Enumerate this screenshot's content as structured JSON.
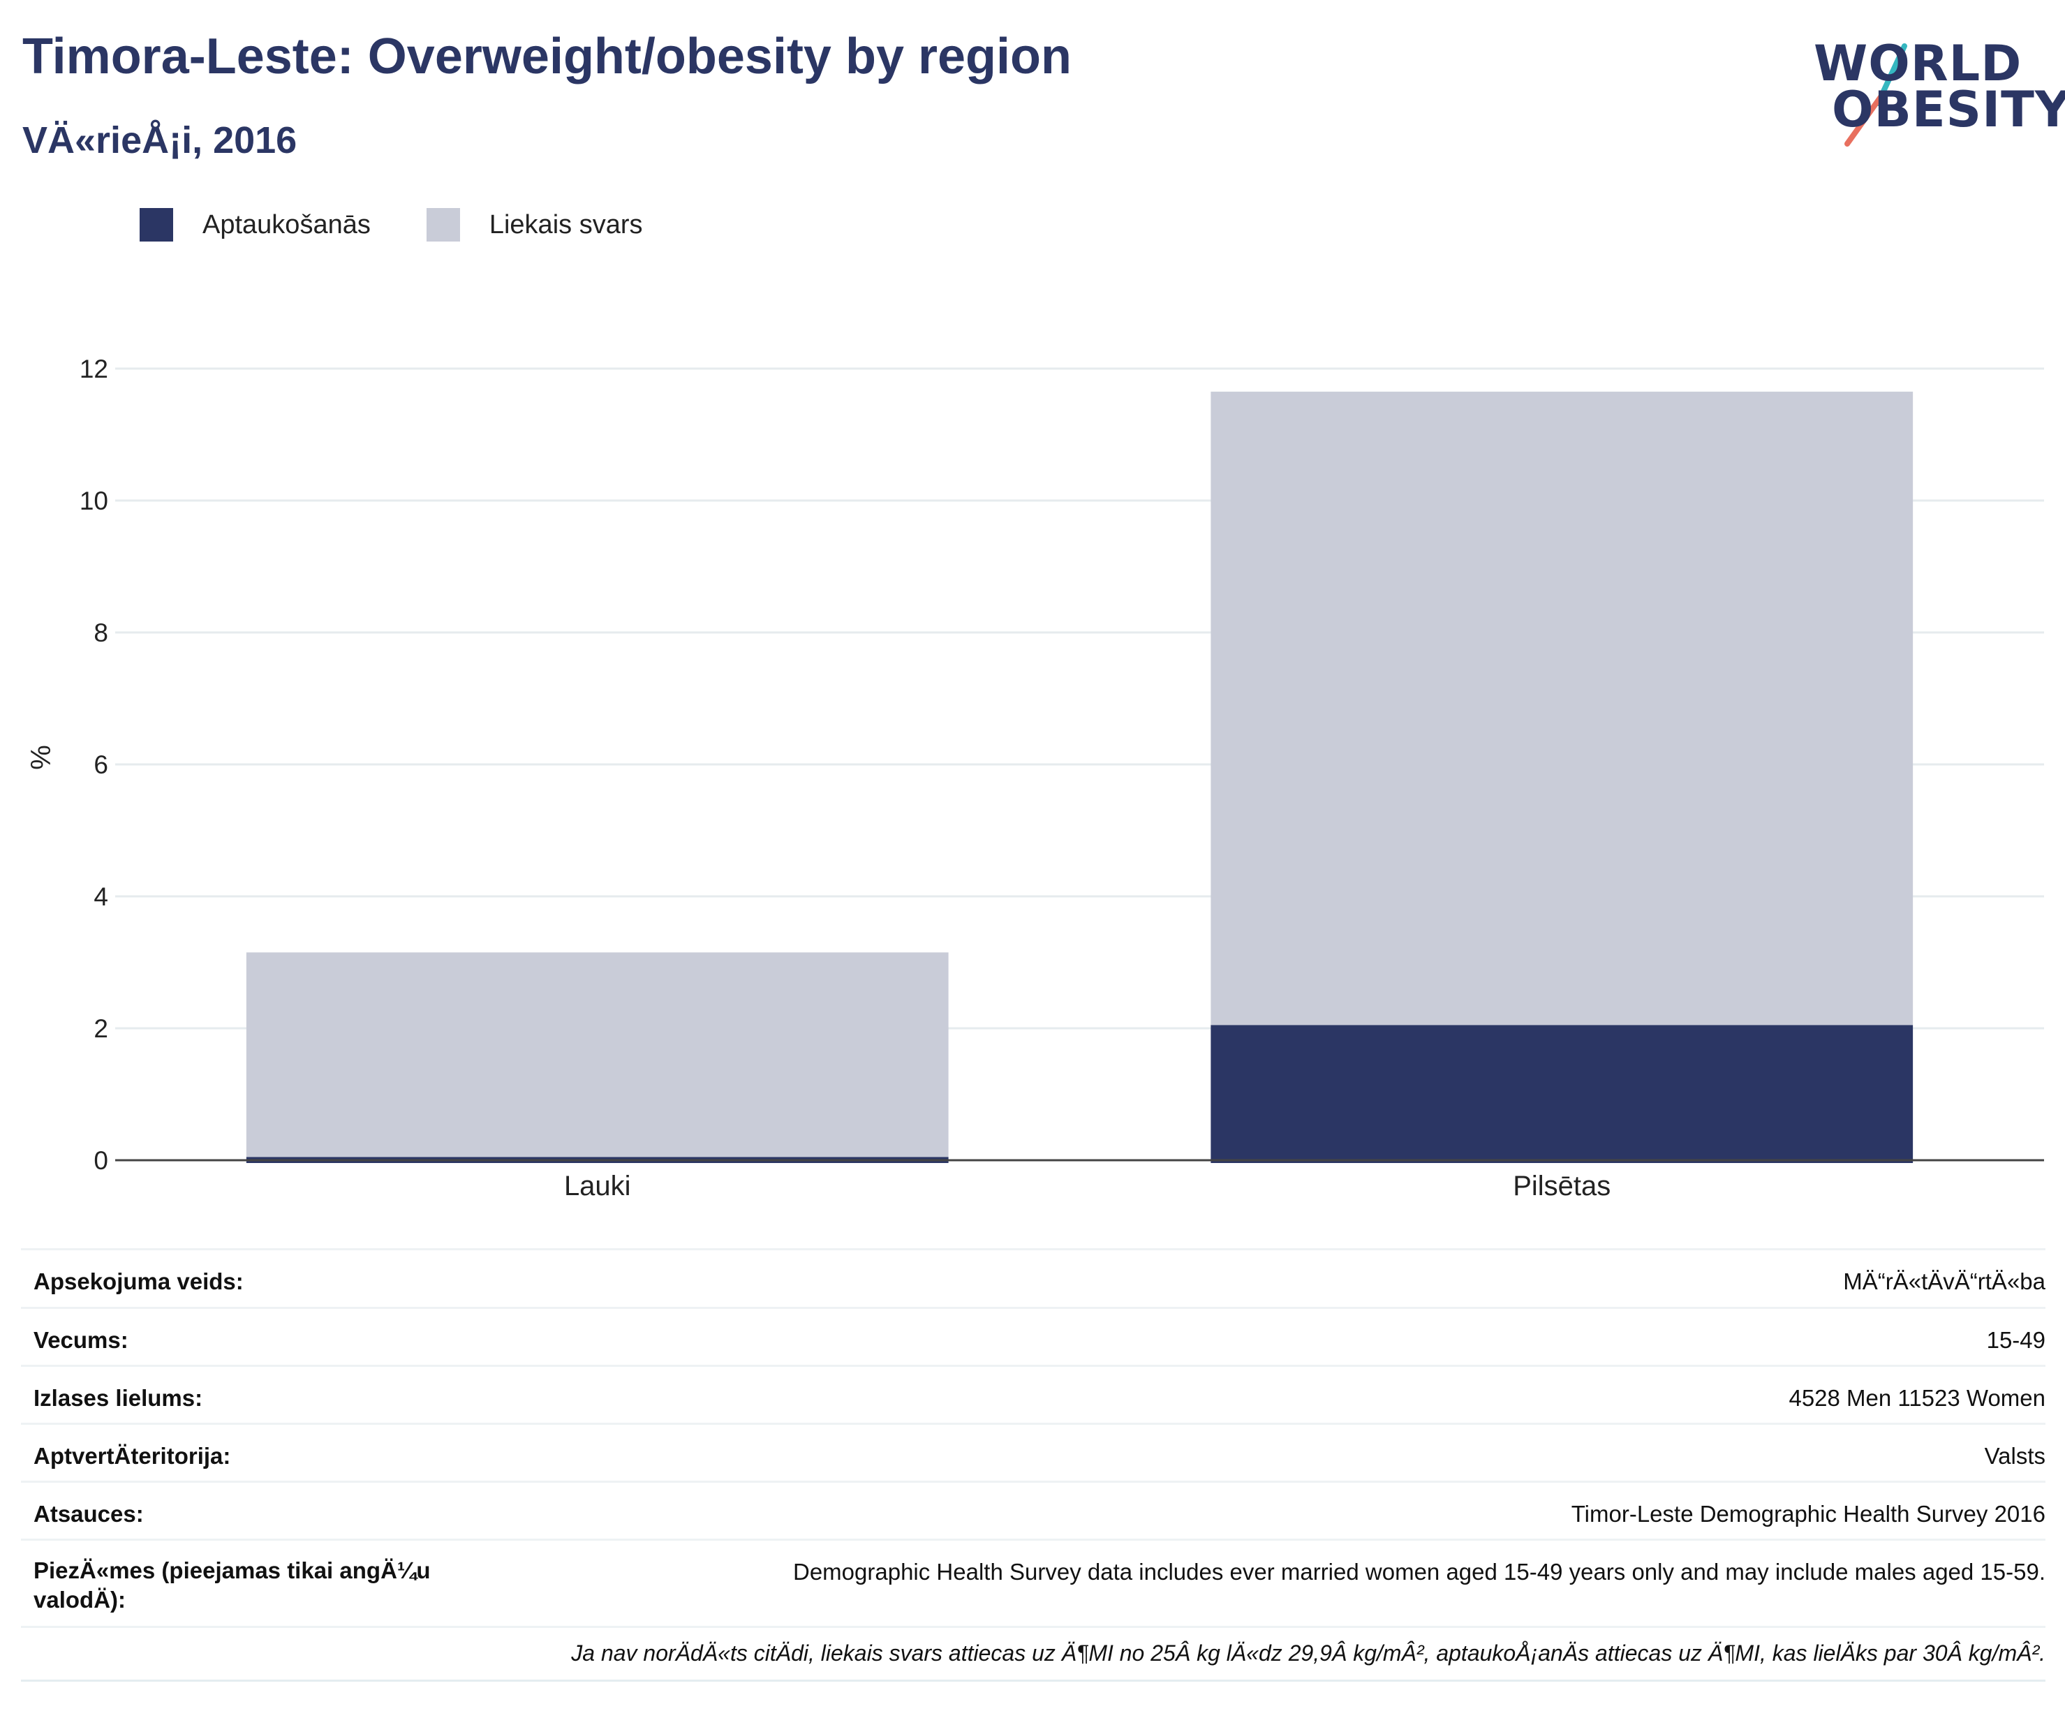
{
  "header": {
    "title": "Timora-Leste: Overweight/obesity by region",
    "subtitle": "VÄ«rieÅ¡i, 2016"
  },
  "logo": {
    "line1": "WORLD",
    "line2": "OBESITY",
    "text_color": "#2b3664",
    "slash_colors": [
      "#35b7c0",
      "#e8705f"
    ]
  },
  "legend": {
    "items": [
      {
        "label": "Aptaukošanās",
        "color": "#2b3664"
      },
      {
        "label": "Liekais svars",
        "color": "#c9ccd8"
      }
    ]
  },
  "chart_data": {
    "type": "bar",
    "stacked": true,
    "categories": [
      "Lauki",
      "Pilsētas"
    ],
    "series": [
      {
        "name": "Aptaukošanās",
        "color": "#2b3664",
        "values": [
          0.05,
          2.05
        ]
      },
      {
        "name": "Liekais svars",
        "color": "#c9ccd8",
        "values": [
          3.1,
          9.6
        ]
      }
    ],
    "ylabel": "%",
    "ylim": [
      0,
      12
    ],
    "yticks": [
      "0",
      "2",
      "4",
      "6",
      "8",
      "10",
      "12"
    ],
    "grid": true,
    "legend_position": "top-left"
  },
  "meta": {
    "rows": [
      {
        "label": "Apsekojuma veids:",
        "value": "MÄ“rÄ«tÄvÄ“rtÄ«ba"
      },
      {
        "label": "Vecums:",
        "value": "15-49"
      },
      {
        "label": "Izlases lielums:",
        "value": "4528 Men 11523 Women"
      },
      {
        "label": "AptvertÄteritorija:",
        "value": "Valsts"
      },
      {
        "label": "Atsauces:",
        "value": "Timor-Leste Demographic Health Survey 2016"
      },
      {
        "label": "PiezÄ«mes (pieejamas tikai angÄ¼u valodÄ):",
        "value": "Demographic Health Survey data includes ever married women aged 15-49 years only and may include males aged 15-59."
      }
    ],
    "footnote": "Ja nav norÄdÄ«ts citÄdi, liekais svars attiecas uz Ä¶MI no 25Â kg lÄ«dz 29,9Â kg/mÂ², aptaukoÅ¡anÄs attiecas uz Ä¶MI, kas lielÄks par 30Â kg/mÂ²."
  }
}
